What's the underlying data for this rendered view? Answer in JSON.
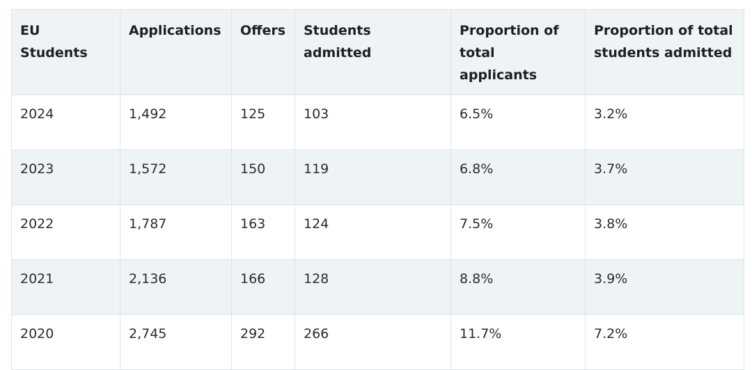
{
  "table": {
    "headers": [
      "EU Students",
      "Applications",
      "Offers",
      "Students admitted",
      "Proportion of total applicants",
      "Proportion of total students admitted"
    ],
    "rows": [
      [
        "2024",
        "1,492",
        "125",
        "103",
        "6.5%",
        "3.2%"
      ],
      [
        "2023",
        "1,572",
        "150",
        "119",
        "6.8%",
        "3.7%"
      ],
      [
        "2022",
        "1,787",
        "163",
        "124",
        "7.5%",
        "3.8%"
      ],
      [
        "2021",
        "2,136",
        "166",
        "128",
        "8.8%",
        "3.9%"
      ],
      [
        "2020",
        "2,745",
        "292",
        "266",
        "11.7%",
        "7.2%"
      ]
    ]
  },
  "colors": {
    "header_bg": "#eef3f5",
    "stripe_bg": "#eef3f5",
    "border": "#dde3e7",
    "text": "#2b2b2b"
  }
}
